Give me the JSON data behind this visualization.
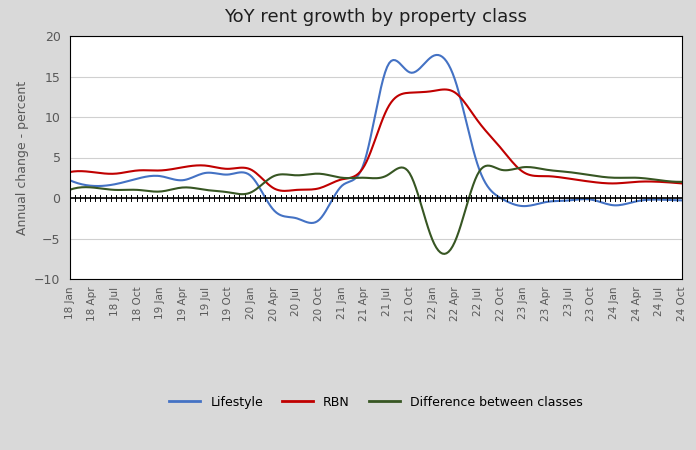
{
  "title": "YoY rent growth by property class",
  "ylabel": "Annual change - percent",
  "ylim": [
    -10,
    20
  ],
  "yticks": [
    -10,
    -5,
    0,
    5,
    10,
    15,
    20
  ],
  "outer_bg": "#d9d9d9",
  "plot_bg": "#ffffff",
  "x_labels": [
    "18 Jan",
    "18 Apr",
    "18 Jul",
    "18 Oct",
    "19 Jan",
    "19 Apr",
    "19 Jul",
    "19 Oct",
    "20 Jan",
    "20 Apr",
    "20 Jul",
    "20 Oct",
    "21 Jan",
    "21 Apr",
    "21 Jul",
    "21 Oct",
    "22 Jan",
    "22 Apr",
    "22 Jul",
    "22 Oct",
    "23 Jan",
    "23 Apr",
    "23 Jul",
    "23 Oct",
    "24 Jan",
    "24 Apr",
    "24 Jul",
    "24 Oct"
  ],
  "lifestyle": [
    2.2,
    1.5,
    1.7,
    2.4,
    2.7,
    2.2,
    3.1,
    2.9,
    2.7,
    -1.5,
    -2.5,
    -2.7,
    1.5,
    4.5,
    16.2,
    15.5,
    17.5,
    14.5,
    4.0,
    0.0,
    -1.0,
    -0.5,
    -0.3,
    -0.2,
    -0.9,
    -0.4,
    -0.2,
    -0.3
  ],
  "rbn": [
    3.2,
    3.2,
    3.0,
    3.4,
    3.4,
    3.8,
    4.0,
    3.6,
    3.5,
    1.2,
    1.0,
    1.2,
    2.3,
    4.0,
    11.0,
    13.0,
    13.2,
    13.0,
    9.5,
    6.2,
    3.2,
    2.7,
    2.4,
    2.0,
    1.8,
    2.0,
    2.0,
    1.8
  ],
  "diff": [
    1.0,
    1.3,
    1.0,
    1.0,
    0.8,
    1.3,
    1.0,
    0.7,
    0.7,
    2.7,
    2.8,
    3.0,
    2.5,
    2.5,
    2.8,
    3.0,
    -5.2,
    -5.3,
    3.0,
    3.5,
    3.8,
    3.5,
    3.2,
    2.8,
    2.5,
    2.5,
    2.2,
    2.0
  ],
  "lifestyle_color": "#4472C4",
  "rbn_color": "#C00000",
  "diff_color": "#375623",
  "line_width": 1.5,
  "legend_labels": [
    "Lifestyle",
    "RBN",
    "Difference between classes"
  ]
}
